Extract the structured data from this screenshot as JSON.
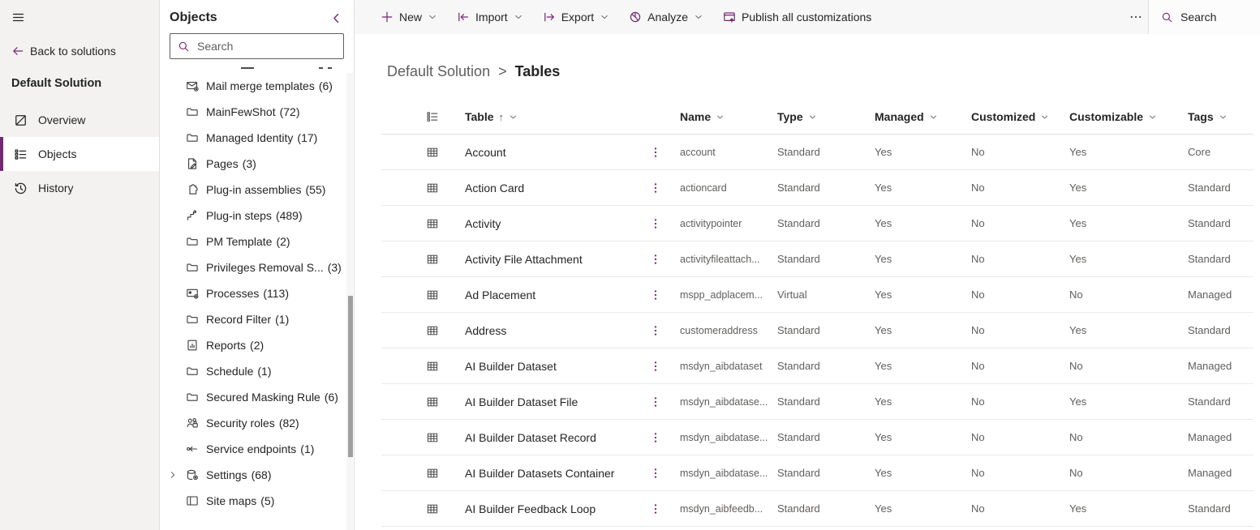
{
  "sidebar": {
    "back_label": "Back to solutions",
    "solution_title": "Default Solution",
    "nav_items": [
      {
        "label": "Overview",
        "icon": "overview-icon",
        "selected": false
      },
      {
        "label": "Objects",
        "icon": "objects-icon",
        "selected": true
      },
      {
        "label": "History",
        "icon": "history-icon",
        "selected": false
      }
    ]
  },
  "objects_panel": {
    "title": "Objects",
    "search_placeholder": "Search",
    "tree_items": [
      {
        "label": "Mail merge templates",
        "count": "(6)",
        "icon": "mail-merge-icon",
        "expandable": false
      },
      {
        "label": "MainFewShot",
        "count": "(72)",
        "icon": "folder-icon",
        "expandable": false
      },
      {
        "label": "Managed Identity",
        "count": "(17)",
        "icon": "folder-icon",
        "expandable": false
      },
      {
        "label": "Pages",
        "count": "(3)",
        "icon": "page-icon",
        "expandable": false
      },
      {
        "label": "Plug-in assemblies",
        "count": "(55)",
        "icon": "puzzle-icon",
        "expandable": false
      },
      {
        "label": "Plug-in steps",
        "count": "(489)",
        "icon": "steps-icon",
        "expandable": false
      },
      {
        "label": "PM Template",
        "count": "(2)",
        "icon": "folder-icon",
        "expandable": false
      },
      {
        "label": "Privileges Removal S...",
        "count": "(3)",
        "icon": "folder-icon",
        "expandable": false
      },
      {
        "label": "Processes",
        "count": "(113)",
        "icon": "process-icon",
        "expandable": false
      },
      {
        "label": "Record Filter",
        "count": "(1)",
        "icon": "folder-icon",
        "expandable": false
      },
      {
        "label": "Reports",
        "count": "(2)",
        "icon": "report-icon",
        "expandable": false
      },
      {
        "label": "Schedule",
        "count": "(1)",
        "icon": "folder-icon",
        "expandable": false
      },
      {
        "label": "Secured Masking Rule",
        "count": "(6)",
        "icon": "folder-icon",
        "expandable": false
      },
      {
        "label": "Security roles",
        "count": "(82)",
        "icon": "security-icon",
        "expandable": false
      },
      {
        "label": "Service endpoints",
        "count": "(1)",
        "icon": "endpoint-icon",
        "expandable": false
      },
      {
        "label": "Settings",
        "count": "(68)",
        "icon": "settings-icon",
        "expandable": true
      },
      {
        "label": "Site maps",
        "count": "(5)",
        "icon": "sitemap-icon",
        "expandable": false
      }
    ]
  },
  "toolbar": {
    "items": [
      {
        "label": "New",
        "icon": "plus-icon",
        "chevron": true
      },
      {
        "label": "Import",
        "icon": "import-icon",
        "chevron": true
      },
      {
        "label": "Export",
        "icon": "export-icon",
        "chevron": true
      },
      {
        "label": "Analyze",
        "icon": "analyze-icon",
        "chevron": true
      },
      {
        "label": "Publish all customizations",
        "icon": "publish-icon",
        "chevron": false
      }
    ],
    "search_label": "Search"
  },
  "breadcrumb": {
    "parent": "Default Solution",
    "separator": ">",
    "current": "Tables"
  },
  "table": {
    "sort_indicator": "↑",
    "columns": [
      {
        "label": "Table"
      },
      {
        "label": "Name"
      },
      {
        "label": "Type"
      },
      {
        "label": "Managed"
      },
      {
        "label": "Customized"
      },
      {
        "label": "Customizable"
      },
      {
        "label": "Tags"
      }
    ],
    "rows": [
      {
        "display": "Account",
        "name": "account",
        "type": "Standard",
        "managed": "Yes",
        "customized": "No",
        "customizable": "Yes",
        "tags": "Core"
      },
      {
        "display": "Action Card",
        "name": "actioncard",
        "type": "Standard",
        "managed": "Yes",
        "customized": "No",
        "customizable": "Yes",
        "tags": "Standard"
      },
      {
        "display": "Activity",
        "name": "activitypointer",
        "type": "Standard",
        "managed": "Yes",
        "customized": "No",
        "customizable": "Yes",
        "tags": "Standard"
      },
      {
        "display": "Activity File Attachment",
        "name": "activityfileattach...",
        "type": "Standard",
        "managed": "Yes",
        "customized": "No",
        "customizable": "Yes",
        "tags": "Standard"
      },
      {
        "display": "Ad Placement",
        "name": "mspp_adplacem...",
        "type": "Virtual",
        "managed": "Yes",
        "customized": "No",
        "customizable": "No",
        "tags": "Managed"
      },
      {
        "display": "Address",
        "name": "customeraddress",
        "type": "Standard",
        "managed": "Yes",
        "customized": "No",
        "customizable": "Yes",
        "tags": "Standard"
      },
      {
        "display": "AI Builder Dataset",
        "name": "msdyn_aibdataset",
        "type": "Standard",
        "managed": "Yes",
        "customized": "No",
        "customizable": "No",
        "tags": "Managed"
      },
      {
        "display": "AI Builder Dataset File",
        "name": "msdyn_aibdatase...",
        "type": "Standard",
        "managed": "Yes",
        "customized": "No",
        "customizable": "Yes",
        "tags": "Standard"
      },
      {
        "display": "AI Builder Dataset Record",
        "name": "msdyn_aibdatase...",
        "type": "Standard",
        "managed": "Yes",
        "customized": "No",
        "customizable": "No",
        "tags": "Managed"
      },
      {
        "display": "AI Builder Datasets Container",
        "name": "msdyn_aibdatase...",
        "type": "Standard",
        "managed": "Yes",
        "customized": "No",
        "customizable": "No",
        "tags": "Managed"
      },
      {
        "display": "AI Builder Feedback Loop",
        "name": "msdyn_aibfeedb...",
        "type": "Standard",
        "managed": "Yes",
        "customized": "No",
        "customizable": "Yes",
        "tags": "Standard"
      }
    ]
  }
}
